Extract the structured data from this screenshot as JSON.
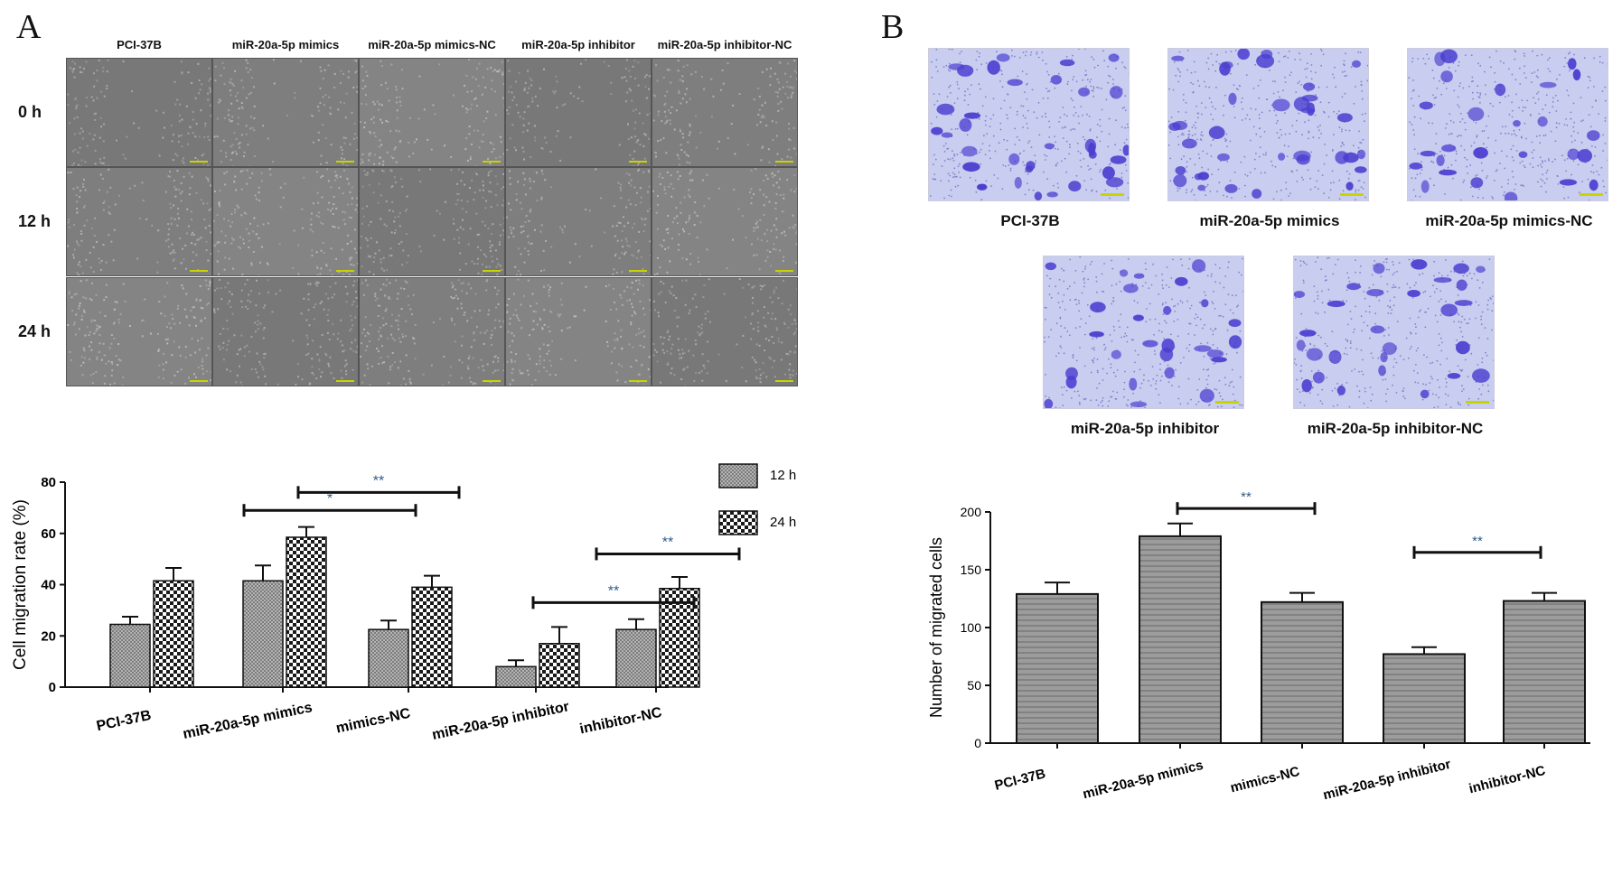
{
  "panels": {
    "a_letter": "A",
    "b_letter": "B"
  },
  "scratch_grid": {
    "columns": [
      "PCI-37B",
      "miR-20a-5p mimics",
      "miR-20a-5p mimics-NC",
      "miR-20a-5p inhibitor",
      "miR-20a-5p inhibitor-NC"
    ],
    "rows": [
      "0 h",
      "12 h",
      "24 h"
    ]
  },
  "transwell": {
    "labels": [
      "PCI-37B",
      "miR-20a-5p mimics",
      "miR-20a-5p mimics-NC",
      "miR-20a-5p inhibitor",
      "miR-20a-5p inhibitor-NC"
    ]
  },
  "colors": {
    "bar_fill": "#9a9a9a",
    "bar_stroke": "#111111",
    "scale_bar": "#c8d400",
    "stain": "#4a3ed0",
    "star": "#2a5a8a"
  },
  "chart_data": [
    {
      "type": "bar",
      "ylabel": "Cell migration rate (%)",
      "xlabel": "",
      "ylim": [
        0,
        80
      ],
      "yticks": [
        "0",
        "20",
        "40",
        "60",
        "80"
      ],
      "categories": [
        "PCI-37B",
        "miR-20a-5p mimics",
        "mimics-NC",
        "miR-20a-5p inhibitor",
        "inhibitor-NC"
      ],
      "series": [
        {
          "name": "12 h",
          "values": [
            24.5,
            41.5,
            22.5,
            8,
            22.5
          ],
          "errors": [
            3,
            6,
            3.5,
            2.5,
            4
          ]
        },
        {
          "name": "24 h",
          "values": [
            41.5,
            58.5,
            39,
            17,
            38.5
          ],
          "errors": [
            5,
            4,
            4.5,
            6.5,
            4.5
          ]
        }
      ],
      "legend_position": "top-right",
      "significance": [
        {
          "from": 1,
          "to": 2,
          "label": "**",
          "y": 76
        },
        {
          "from": 1,
          "to": 2,
          "label": "*",
          "y": 69
        },
        {
          "from": 3,
          "to": 4,
          "label": "**",
          "y": 52
        },
        {
          "from": 3,
          "to": 4,
          "label": "**",
          "y": 33
        }
      ]
    },
    {
      "type": "bar",
      "ylabel": "Number of migrated cells",
      "xlabel": "",
      "ylim": [
        0,
        200
      ],
      "yticks": [
        "0",
        "50",
        "100",
        "150",
        "200"
      ],
      "categories": [
        "PCI-37B",
        "miR-20a-5p mimics",
        "mimics-NC",
        "miR-20a-5p inhibitor",
        "inhibitor-NC"
      ],
      "values": [
        129,
        179,
        122,
        77,
        123
      ],
      "errors": [
        10,
        11,
        8,
        6,
        7
      ],
      "significance": [
        {
          "from": 1,
          "to": 2,
          "label": "**",
          "y": 203
        },
        {
          "from": 3,
          "to": 4,
          "label": "**",
          "y": 165
        }
      ]
    }
  ]
}
